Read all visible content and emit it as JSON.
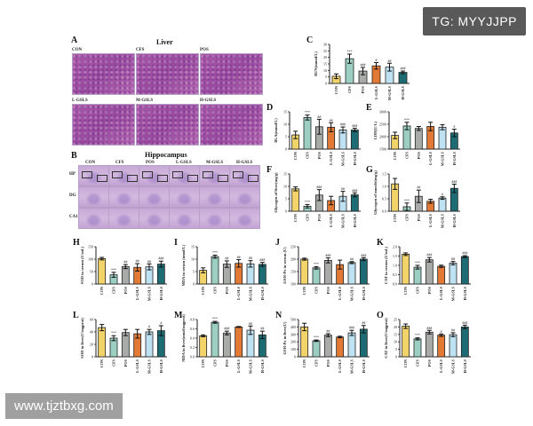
{
  "watermarks": {
    "top_right": "TG: MYYJJPP",
    "bottom_left": "www.tjztbxg.com"
  },
  "groups": [
    "CON",
    "CFS",
    "POS",
    "L-GSLS",
    "M-GSLS",
    "H-GSLS"
  ],
  "colors": {
    "CON": "#f3d46a",
    "CFS": "#9ccfc2",
    "POS": "#a8aba7",
    "L-GSLS": "#e27a35",
    "M-GSLS": "#bfe2f2",
    "H-GSLS": "#1d6c73"
  },
  "panel_a": {
    "label": "A",
    "title": "Liver",
    "images": [
      "CON",
      "CFS",
      "POS",
      "L-GSLS",
      "M-GSLS",
      "H-GSLS"
    ]
  },
  "panel_b": {
    "label": "B",
    "title": "Hippocampus",
    "columns": [
      "CON",
      "CFS",
      "POS",
      "L-GSLS",
      "M-GSLS",
      "H-GSLS"
    ],
    "rows": [
      "HP",
      "DG",
      "CA1"
    ]
  },
  "chart_data": [
    {
      "id": "C",
      "type": "bar",
      "ylabel": "BUN(mmol/L)",
      "ylim": [
        0,
        30
      ],
      "ticks": [
        "0",
        "5",
        "10",
        "15",
        "20",
        "25",
        "30"
      ],
      "categories": [
        "CON",
        "CFS",
        "POS",
        "L-GSLS",
        "M-GSLS",
        "H-GSLS"
      ],
      "values": [
        5.5,
        19,
        9.5,
        13.5,
        12.5,
        8.5
      ],
      "errors": [
        1.8,
        3.5,
        2.8,
        2.5,
        3,
        1
      ],
      "annotations": [
        "",
        "***",
        "###",
        "#",
        "##",
        "###"
      ]
    },
    {
      "id": "D",
      "type": "bar",
      "ylabel": "BLA(mmol/L)",
      "ylim": [
        0,
        15
      ],
      "ticks": [
        "0",
        "5",
        "10",
        "15"
      ],
      "categories": [
        "CON",
        "CFS",
        "POS",
        "L-GSLS",
        "M-GSLS",
        "H-GSLS"
      ],
      "values": [
        5.7,
        12.7,
        9,
        8.8,
        7.7,
        7.7
      ],
      "errors": [
        1.5,
        1,
        3,
        1.8,
        1.2,
        0.7
      ],
      "annotations": [
        "",
        "***",
        "##",
        "##",
        "###",
        "###"
      ]
    },
    {
      "id": "E",
      "type": "bar",
      "ylabel": "LDH(U/L)",
      "ylim": [
        1500,
        3000
      ],
      "ticks": [
        "1500",
        "2000",
        "2500",
        "3000"
      ],
      "categories": [
        "CON",
        "CFS",
        "POS",
        "L-GSLS",
        "M-GSLS",
        "H-GSLS"
      ],
      "values": [
        2050,
        2430,
        2330,
        2410,
        2380,
        2150
      ],
      "errors": [
        130,
        150,
        80,
        170,
        100,
        150
      ],
      "annotations": [
        "",
        "***",
        "",
        "",
        "",
        "#"
      ]
    },
    {
      "id": "F",
      "type": "bar",
      "ylabel": "Glycogen of liver(mg/g)",
      "ylim": [
        0,
        15
      ],
      "ticks": [
        "0",
        "5",
        "10",
        "15"
      ],
      "categories": [
        "CON",
        "CFS",
        "POS",
        "L-GSLS",
        "M-GSLS",
        "H-GSLS"
      ],
      "values": [
        9,
        2,
        6.5,
        4.3,
        6,
        6.6
      ],
      "errors": [
        0.8,
        0.7,
        2.2,
        1.7,
        2,
        0.8
      ],
      "annotations": [
        "",
        "***",
        "###",
        "",
        "##",
        "###"
      ]
    },
    {
      "id": "G",
      "type": "bar",
      "ylabel": "Glycogen of muscle(mg/g)",
      "ylim": [
        0,
        1.5
      ],
      "ticks": [
        "0.0",
        "0.5",
        "1.0",
        "1.5"
      ],
      "categories": [
        "CON",
        "CFS",
        "POS",
        "L-GSLS",
        "M-GSLS",
        "H-GSLS"
      ],
      "values": [
        1.1,
        0.18,
        0.6,
        0.4,
        0.53,
        0.92
      ],
      "errors": [
        0.22,
        0.15,
        0.25,
        0.08,
        0.05,
        0.17
      ],
      "annotations": [
        "",
        "***",
        "##",
        "",
        "#",
        "###"
      ]
    },
    {
      "id": "H",
      "type": "bar",
      "ylabel": "SOD in serum (U/mL)",
      "ylim": [
        0,
        150
      ],
      "ticks": [
        "0",
        "50",
        "100",
        "150"
      ],
      "categories": [
        "CON",
        "CFS",
        "POS",
        "L-GSLS",
        "M-GSLS",
        "H-GSLS"
      ],
      "values": [
        102,
        37,
        70,
        67,
        69,
        80
      ],
      "errors": [
        5,
        10,
        8,
        15,
        12,
        12
      ],
      "annotations": [
        "",
        "***",
        "##",
        "##",
        "##",
        "###"
      ]
    },
    {
      "id": "I",
      "type": "bar",
      "ylabel": "MDA in serum (nmol/L)",
      "ylim": [
        0,
        15
      ],
      "ticks": [
        "0",
        "5",
        "10",
        "15"
      ],
      "categories": [
        "CON",
        "CFS",
        "POS",
        "L-GSLS",
        "M-GSLS",
        "H-GSLS"
      ],
      "values": [
        5.5,
        11,
        8,
        8.3,
        8.1,
        7.9
      ],
      "errors": [
        1,
        0.6,
        1.3,
        1.5,
        1.3,
        0.8
      ],
      "annotations": [
        "",
        "***",
        "##",
        "##",
        "##",
        "###"
      ]
    },
    {
      "id": "J",
      "type": "bar",
      "ylabel": "GSH-Px in serum (U)",
      "ylim": [
        100,
        250
      ],
      "ticks": [
        "100",
        "150",
        "200",
        "250"
      ],
      "categories": [
        "CON",
        "CFS",
        "POS",
        "L-GSLS",
        "M-GSLS",
        "H-GSLS"
      ],
      "values": [
        200,
        165,
        195,
        178,
        186,
        200
      ],
      "errors": [
        4,
        5,
        10,
        18,
        4,
        6
      ],
      "annotations": [
        "",
        "***",
        "###",
        "",
        "##",
        "###"
      ]
    },
    {
      "id": "K",
      "type": "bar",
      "ylabel": "CAT in serum (U/mL)",
      "ylim": [
        0,
        2
      ],
      "ticks": [
        "0.0",
        "0.5",
        "1.0",
        "1.5",
        "2.0"
      ],
      "categories": [
        "CON",
        "CFS",
        "POS",
        "L-GSLS",
        "M-GSLS",
        "H-GSLS"
      ],
      "values": [
        1.6,
        0.9,
        1.3,
        0.95,
        1.12,
        1.47
      ],
      "errors": [
        0.07,
        0.1,
        0.12,
        0.06,
        0.09,
        0.05
      ],
      "annotations": [
        "",
        "***",
        "###",
        "",
        "##",
        "###"
      ]
    },
    {
      "id": "L",
      "type": "bar",
      "ylabel": "SOD in liver(U/mgprot)",
      "ylim": [
        0,
        60
      ],
      "ticks": [
        "0",
        "20",
        "40",
        "60"
      ],
      "categories": [
        "CON",
        "CFS",
        "POS",
        "L-GSLS",
        "M-GSLS",
        "H-GSLS"
      ],
      "values": [
        47,
        30,
        39,
        37,
        40,
        42
      ],
      "errors": [
        5,
        4,
        5,
        7,
        4,
        8
      ],
      "annotations": [
        "",
        "***",
        "",
        "",
        "#",
        "#"
      ]
    },
    {
      "id": "M",
      "type": "bar",
      "ylabel": "MDA in liver(nmol/mgprot)",
      "ylim": [
        0,
        0.8
      ],
      "ticks": [
        "0.0",
        "0.2",
        "0.4",
        "0.6",
        "0.8"
      ],
      "categories": [
        "CON",
        "CFS",
        "POS",
        "L-GSLS",
        "M-GSLS",
        "H-GSLS"
      ],
      "values": [
        0.45,
        0.74,
        0.51,
        0.64,
        0.57,
        0.47
      ],
      "errors": [
        0.02,
        0.02,
        0.04,
        0.01,
        0.09,
        0.08
      ],
      "annotations": [
        "",
        "***",
        "###",
        "",
        "##",
        "##"
      ]
    },
    {
      "id": "N",
      "type": "bar",
      "ylabel": "GSH-Px in liver(U)",
      "ylim": [
        0,
        500
      ],
      "ticks": [
        "0",
        "100",
        "200",
        "300",
        "400",
        "500"
      ],
      "categories": [
        "CON",
        "CFS",
        "POS",
        "L-GSLS",
        "M-GSLS",
        "H-GSLS"
      ],
      "values": [
        400,
        215,
        290,
        265,
        320,
        370
      ],
      "errors": [
        50,
        10,
        20,
        10,
        35,
        50
      ],
      "annotations": [
        "",
        "***",
        "##",
        "",
        "###",
        "##"
      ]
    },
    {
      "id": "O",
      "type": "bar",
      "ylabel": "CAT in liver(U/mgprot)",
      "ylim": [
        0,
        25
      ],
      "ticks": [
        "0",
        "5",
        "10",
        "15",
        "20",
        "25"
      ],
      "categories": [
        "CON",
        "CFS",
        "POS",
        "L-GSLS",
        "M-GSLS",
        "H-GSLS"
      ],
      "values": [
        20.5,
        12,
        16.5,
        14.5,
        14.8,
        20
      ],
      "errors": [
        1.5,
        0.7,
        1.2,
        0.8,
        1.3,
        1.2
      ],
      "annotations": [
        "",
        "***",
        "###",
        "#",
        "##",
        "###"
      ]
    }
  ]
}
